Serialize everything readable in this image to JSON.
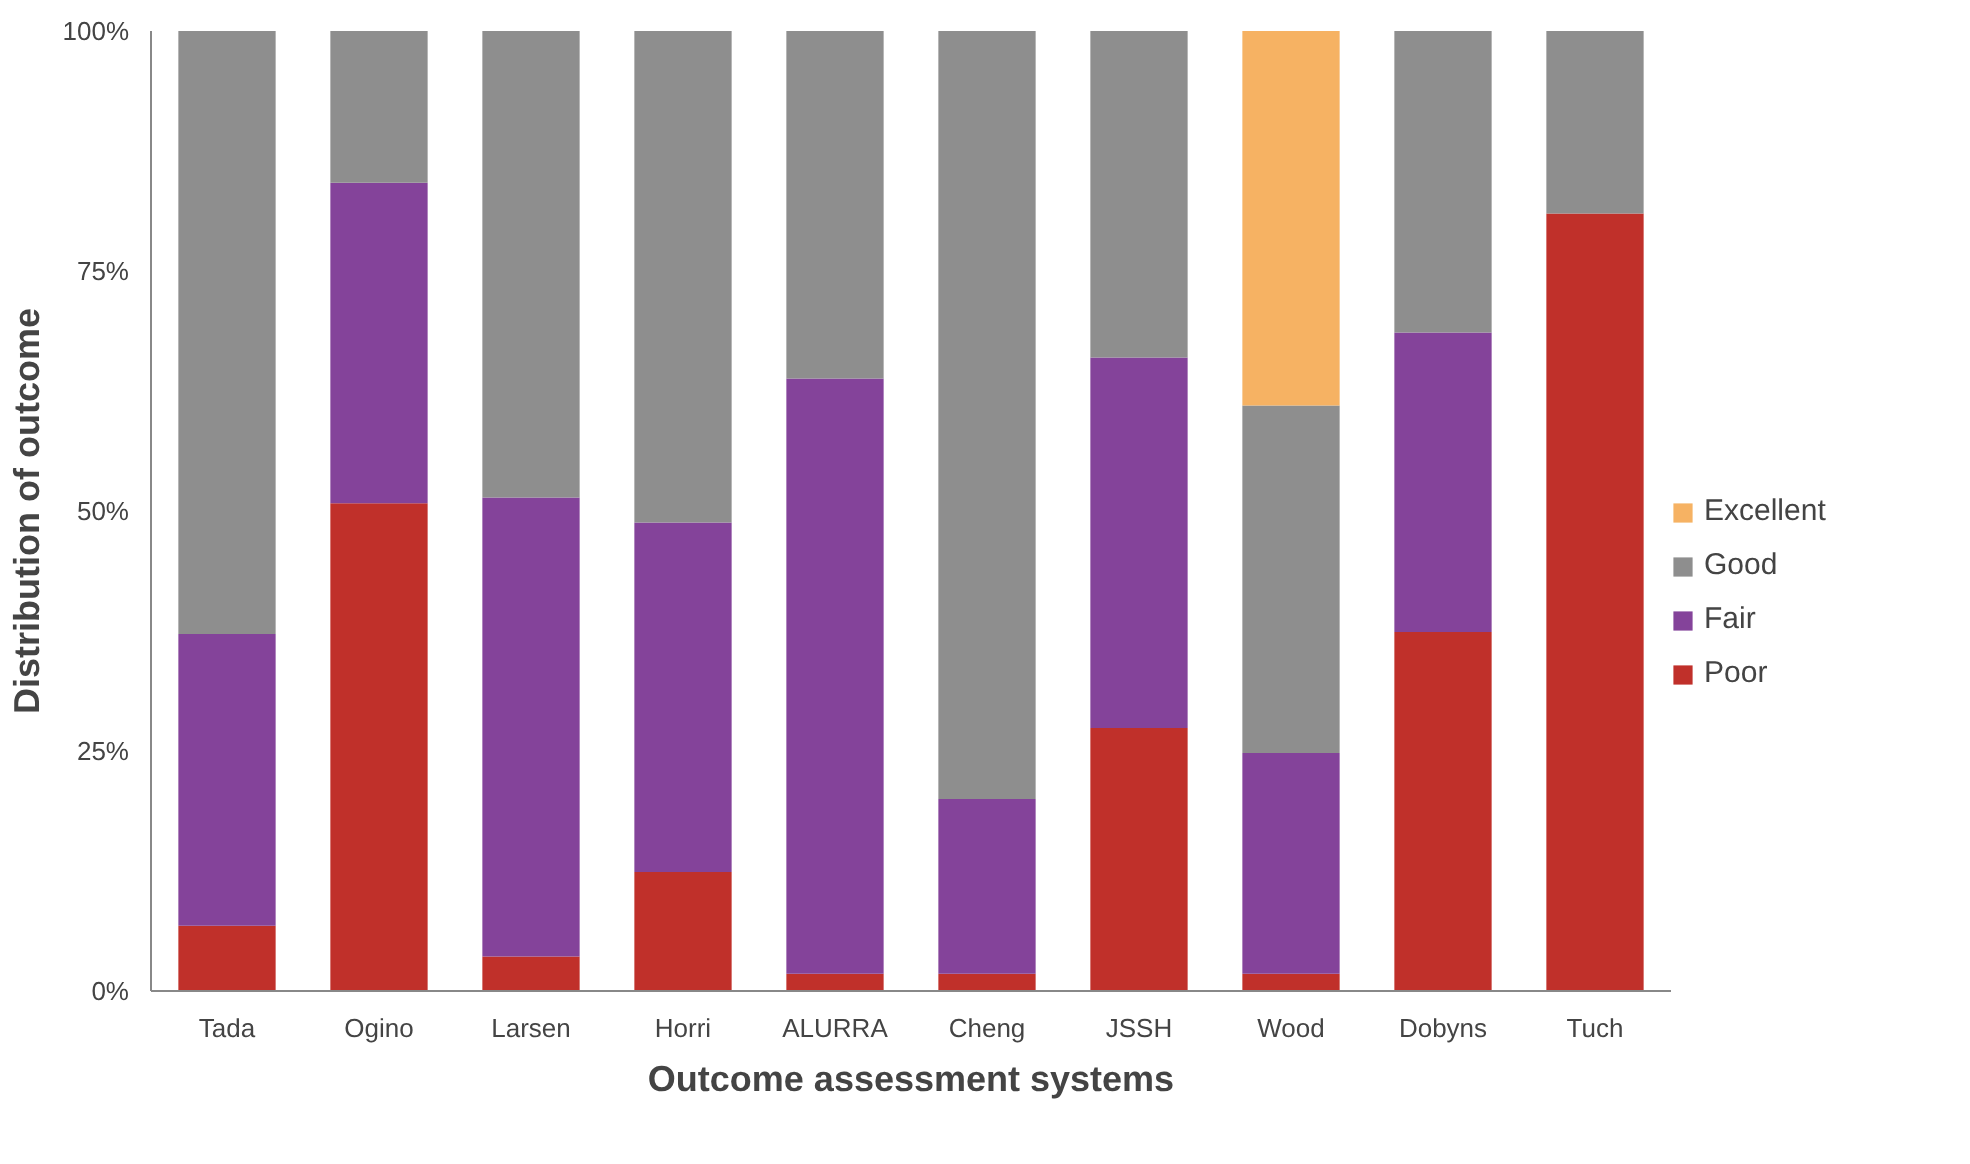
{
  "chart_data": {
    "type": "bar",
    "stacked": true,
    "xlabel": "Outcome assessment systems",
    "ylabel": "Distribution of outcome",
    "categories": [
      "Tada",
      "Ogino",
      "Larsen",
      "Horri",
      "ALURRA",
      "Cheng",
      "JSSH",
      "Wood",
      "Dobyns",
      "Tuch"
    ],
    "series": [
      {
        "name": "Poor",
        "color": "#c0302a",
        "values": [
          6.8,
          50.8,
          3.6,
          12.4,
          1.8,
          1.8,
          27.4,
          1.8,
          37.4,
          81
        ]
      },
      {
        "name": "Fair",
        "color": "#84439a",
        "values": [
          30.4,
          33.4,
          47.8,
          36.4,
          62,
          18.2,
          38.6,
          23,
          31.2,
          null
        ]
      },
      {
        "name": "Good",
        "color": "#8e8e8e",
        "values": [
          62.8,
          15.8,
          48.6,
          51.2,
          36.2,
          80,
          34,
          36.2,
          31.4,
          19
        ]
      },
      {
        "name": "Excellent",
        "color": "#f6b263",
        "values": [
          null,
          null,
          null,
          null,
          null,
          null,
          null,
          39,
          null,
          null
        ]
      }
    ],
    "ylim": [
      0,
      100
    ],
    "yticks": [
      {
        "value": 0,
        "label": "0%"
      },
      {
        "value": 25,
        "label": "25%"
      },
      {
        "value": 50,
        "label": "50%"
      },
      {
        "value": 75,
        "label": "75%"
      },
      {
        "value": 100,
        "label": "100%"
      }
    ],
    "legend": "right",
    "grid": false
  }
}
